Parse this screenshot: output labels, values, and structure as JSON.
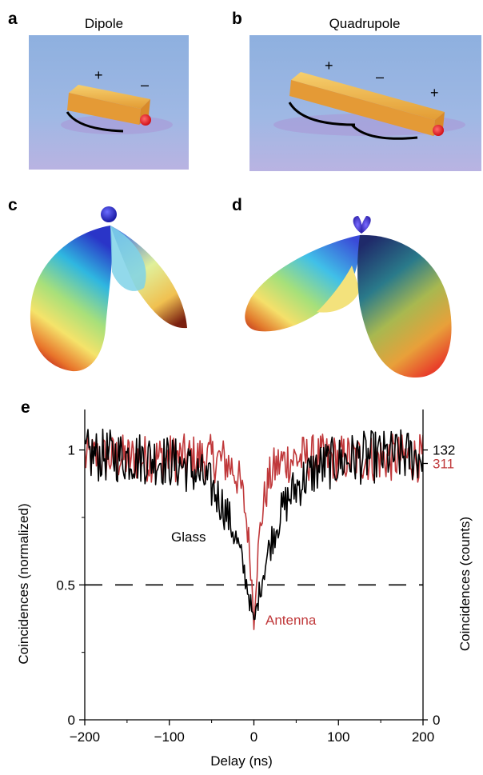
{
  "panels": {
    "a": {
      "label": "a",
      "title": "Dipole",
      "plus": "+",
      "minus": "–"
    },
    "b": {
      "label": "b",
      "title": "Quadrupole",
      "plus1": "+",
      "minus": "–",
      "plus2": "+"
    },
    "c": {
      "label": "c"
    },
    "d": {
      "label": "d"
    },
    "e": {
      "label": "e"
    }
  },
  "chart_data": {
    "type": "line",
    "xlabel": "Delay (ns)",
    "ylabel_left": "Coincidences (normalized)",
    "ylabel_right": "Coincidences (counts)",
    "xlim": [
      -200,
      200
    ],
    "ylim": [
      0,
      1.15
    ],
    "xticks": [
      -200,
      -100,
      0,
      100,
      200
    ],
    "xtick_labels": [
      "−200",
      "−100",
      "0",
      "100",
      "200"
    ],
    "yticks_left": [
      0,
      0.5,
      1
    ],
    "ytick_labels_left": [
      "0",
      "0.5",
      "1"
    ],
    "right_axis_labels": [
      {
        "text": "132",
        "color": "#000000",
        "at_y": 1.0
      },
      {
        "text": "311",
        "color": "#c0393b",
        "at_y": 0.95
      },
      {
        "text": "0",
        "color": "#000000",
        "at_y": 0
      }
    ],
    "reference_line": {
      "y": 0.5,
      "style": "dashed"
    },
    "series": [
      {
        "name": "Glass",
        "color": "#000000",
        "profile": {
          "baseline": 0.98,
          "min": 0.35,
          "min_at": 0,
          "halfwidth_ns": 30
        }
      },
      {
        "name": "Antenna",
        "color": "#c0393b",
        "profile": {
          "baseline": 0.97,
          "min": 0.36,
          "min_at": 0,
          "halfwidth_ns": 9
        }
      }
    ],
    "annotations": [
      {
        "text": "Glass",
        "color": "#000000"
      },
      {
        "text": "Antenna",
        "color": "#c0393b"
      }
    ]
  },
  "colors": {
    "sky": "#8fb1df",
    "rod": "#e8a63c",
    "emitter": "#e8202a",
    "red_series": "#c0393b"
  }
}
